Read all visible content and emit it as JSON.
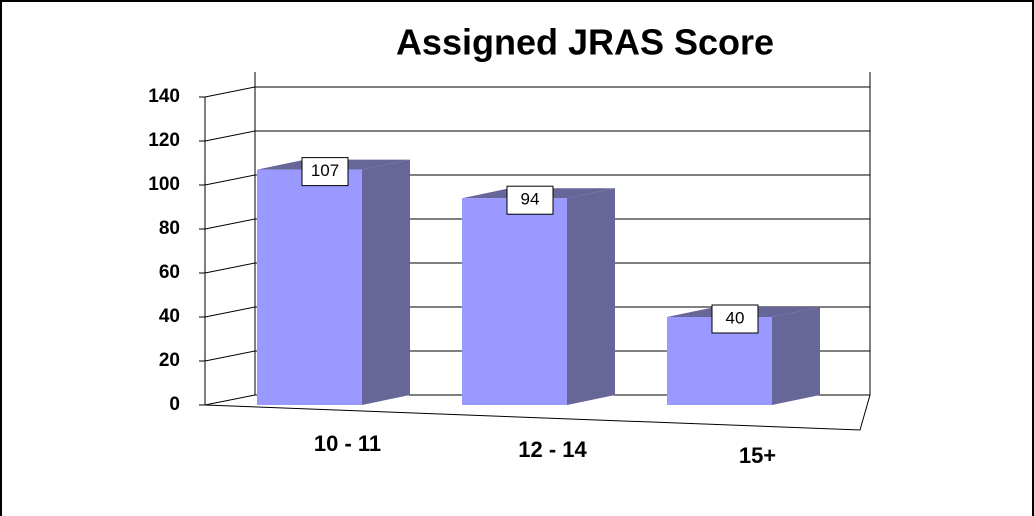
{
  "chart_data": {
    "type": "bar3d",
    "title": "Assigned JRAS Score",
    "categories": [
      "10 - 11",
      "12 - 14",
      "15+"
    ],
    "values": [
      107,
      94,
      40
    ],
    "color": "#9999ff",
    "side_color": "#666699",
    "ylim": [
      0,
      140
    ],
    "yticks": [
      0,
      20,
      40,
      60,
      80,
      100,
      120,
      140
    ],
    "grid": true
  }
}
